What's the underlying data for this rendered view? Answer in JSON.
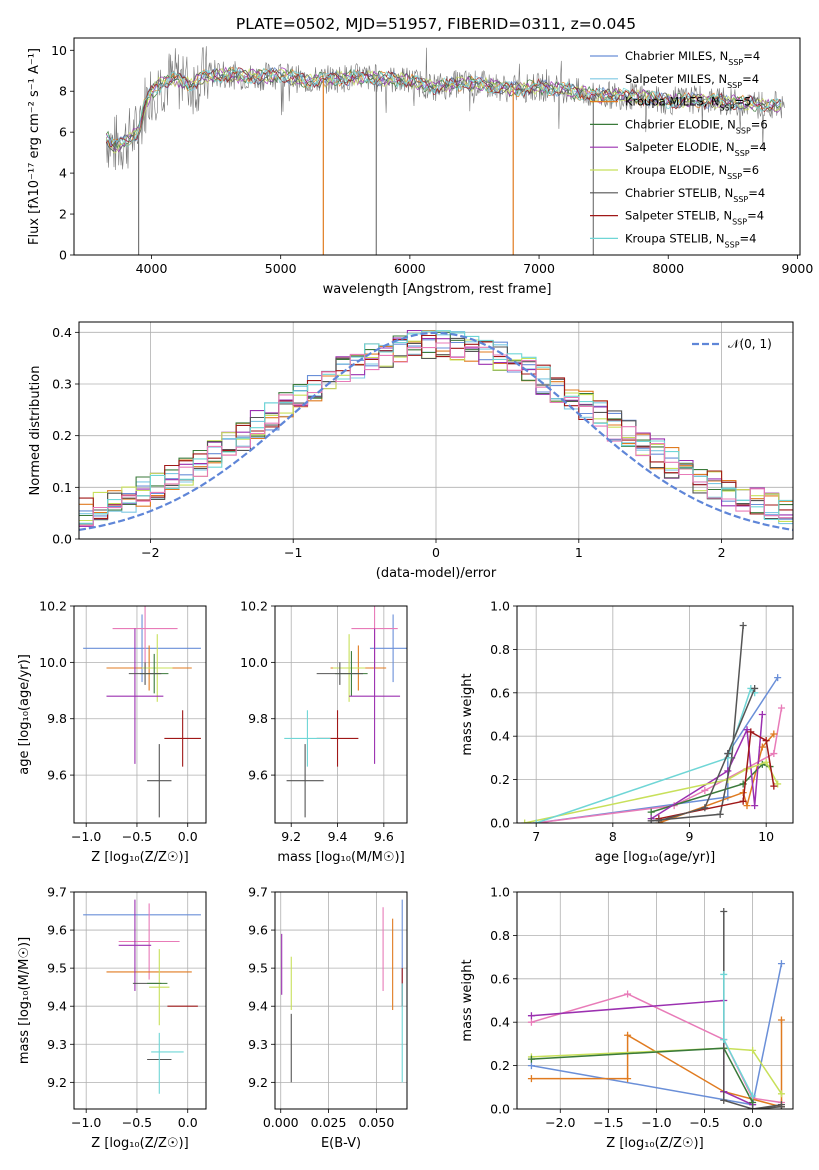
{
  "title": "PLATE=0502, MJD=51957, FIBERID=0311, z=0.045",
  "colors": {
    "chabrier_miles": "#6a8fd8",
    "salpeter_miles": "#7ec8e3",
    "kroupa_miles": "#e07b20",
    "chabrier_elodie": "#3a7a3a",
    "salpeter_elodie": "#9b30b0",
    "kroupa_elodie": "#c8e05a",
    "chabrier_stelib": "#555555",
    "salpeter_stelib": "#a01818",
    "kroupa_stelib": "#6fd6d6",
    "pink": "#e87bb8",
    "data": "#777777",
    "normal": "#5f86d8"
  },
  "chart_data": [
    {
      "id": "spectrum",
      "type": "line",
      "xlabel": "wavelength [Angstrom, rest frame]",
      "ylabel": "Flux [fλ10⁻¹⁷ erg cm⁻² s⁻¹ A⁻¹]",
      "xlim": [
        3400,
        9020
      ],
      "ylim": [
        0,
        10.6
      ],
      "xticks": [
        "4000",
        "5000",
        "6000",
        "7000",
        "8000",
        "9000"
      ],
      "yticks": [
        "0",
        "2",
        "4",
        "6",
        "8",
        "10"
      ],
      "legend": [
        "Chabrier MILES, N_SSP=4",
        "Salpeter MILES, N_SSP=4",
        "Kroupa MILES, N_SSP=5",
        "Chabrier ELODIE, N_SSP=6",
        "Salpeter ELODIE, N_SSP=4",
        "Kroupa ELODIE, N_SSP=6",
        "Chabrier STELIB, N_SSP=4",
        "Salpeter STELIB, N_SSP=4",
        "Kroupa STELIB, N_SSP=4"
      ],
      "legend_placement": "right",
      "continuum": [
        [
          3650,
          5.8
        ],
        [
          3700,
          5.3
        ],
        [
          3800,
          5.6
        ],
        [
          3900,
          6.0
        ],
        [
          3950,
          7.4
        ],
        [
          4000,
          8.0
        ],
        [
          4100,
          8.5
        ],
        [
          4200,
          8.6
        ],
        [
          4300,
          8.3
        ],
        [
          4400,
          8.7
        ],
        [
          4600,
          8.8
        ],
        [
          4800,
          8.7
        ],
        [
          5000,
          8.8
        ],
        [
          5200,
          8.5
        ],
        [
          5400,
          8.6
        ],
        [
          5600,
          8.7
        ],
        [
          5800,
          8.6
        ],
        [
          6000,
          8.5
        ],
        [
          6200,
          8.2
        ],
        [
          6400,
          8.4
        ],
        [
          6600,
          8.3
        ],
        [
          6800,
          8.1
        ],
        [
          7000,
          8.2
        ],
        [
          7200,
          8.1
        ],
        [
          7400,
          7.8
        ],
        [
          7600,
          7.8
        ],
        [
          7800,
          7.7
        ],
        [
          8000,
          7.5
        ],
        [
          8200,
          7.6
        ],
        [
          8400,
          7.5
        ],
        [
          8600,
          7.4
        ],
        [
          8800,
          7.3
        ],
        [
          9000,
          7.4
        ]
      ],
      "dips": [
        [
          3900,
          0
        ],
        [
          5330,
          0
        ],
        [
          5740,
          0
        ],
        [
          6800,
          0
        ],
        [
          7420,
          0
        ]
      ]
    },
    {
      "id": "residuals",
      "type": "histogram",
      "xlabel": "(data-model)/error",
      "ylabel": "Normed distribution",
      "xlim": [
        -2.5,
        2.5
      ],
      "ylim": [
        0,
        0.42
      ],
      "xticks": [
        "−2",
        "−1",
        "0",
        "1",
        "2"
      ],
      "yticks": [
        "0.0",
        "0.1",
        "0.2",
        "0.3",
        "0.4"
      ],
      "legend": [
        "𝒩(0, 1)"
      ],
      "legend_placement": "top-right",
      "bin_width": 0.1
    },
    {
      "id": "age_vs_Z",
      "type": "scatter",
      "xlabel": "Z [log₁₀(Z/Z☉)]",
      "ylabel": "age  [log₁₀(age/yr)]",
      "xlim": [
        -1.12,
        0.18
      ],
      "ylim": [
        9.43,
        10.2
      ],
      "xticks": [
        "−1.0",
        "−0.5",
        "0.0"
      ],
      "yticks": [
        "9.6",
        "9.8",
        "10.0",
        "10.2"
      ],
      "points": [
        {
          "c": "chabrier_miles",
          "x": -0.45,
          "xe": 0.58,
          "y": 10.05,
          "ye": 0.12
        },
        {
          "c": "pink",
          "x": -0.42,
          "xe": 0.32,
          "y": 10.12,
          "ye": 0.14
        },
        {
          "c": "kroupa_miles",
          "x": -0.38,
          "xe": 0.42,
          "y": 9.98,
          "ye": 0.08
        },
        {
          "c": "kroupa_elodie",
          "x": -0.3,
          "xe": 0.15,
          "y": 9.98,
          "ye": 0.12
        },
        {
          "c": "chabrier_elodie",
          "x": -0.33,
          "xe": 0.14,
          "y": 9.96,
          "ye": 0.07
        },
        {
          "c": "salpeter_elodie",
          "x": -0.52,
          "xe": 0.28,
          "y": 9.88,
          "ye": 0.24
        },
        {
          "c": "chabrier_stelib",
          "x": -0.42,
          "xe": 0.16,
          "y": 9.96,
          "ye": 0.04
        },
        {
          "c": "salpeter_stelib",
          "x": -0.05,
          "xe": 0.18,
          "y": 9.73,
          "ye": 0.1
        },
        {
          "c": "chabrier_stelib",
          "x": -0.28,
          "xe": 0.12,
          "y": 9.58,
          "ye": 0.13
        }
      ]
    },
    {
      "id": "age_vs_mass",
      "type": "scatter",
      "xlabel": "mass [log₁₀(M/M☉)]",
      "ylabel": "",
      "xlim": [
        9.13,
        9.7
      ],
      "ylim": [
        9.43,
        10.2
      ],
      "xticks": [
        "9.2",
        "9.4",
        "9.6"
      ],
      "yticks": [
        "9.6",
        "9.8",
        "10.0",
        "10.2"
      ],
      "points": [
        {
          "c": "chabrier_miles",
          "x": 9.64,
          "xe": 0.1,
          "y": 10.05,
          "ye": 0.12
        },
        {
          "c": "pink",
          "x": 9.56,
          "xe": 0.1,
          "y": 10.12,
          "ye": 0.14
        },
        {
          "c": "kroupa_miles",
          "x": 9.49,
          "xe": 0.12,
          "y": 9.98,
          "ye": 0.08
        },
        {
          "c": "kroupa_elodie",
          "x": 9.45,
          "xe": 0.07,
          "y": 9.98,
          "ye": 0.12
        },
        {
          "c": "chabrier_elodie",
          "x": 9.46,
          "xe": 0.07,
          "y": 9.96,
          "ye": 0.08
        },
        {
          "c": "salpeter_elodie",
          "x": 9.56,
          "xe": 0.11,
          "y": 9.88,
          "ye": 0.24
        },
        {
          "c": "chabrier_stelib",
          "x": 9.41,
          "xe": 0.1,
          "y": 9.96,
          "ye": 0.04
        },
        {
          "c": "salpeter_stelib",
          "x": 9.4,
          "xe": 0.09,
          "y": 9.73,
          "ye": 0.1
        },
        {
          "c": "kroupa_stelib",
          "x": 9.27,
          "xe": 0.1,
          "y": 9.73,
          "ye": 0.1
        },
        {
          "c": "chabrier_stelib",
          "x": 9.26,
          "xe": 0.08,
          "y": 9.58,
          "ye": 0.13
        }
      ]
    },
    {
      "id": "weight_vs_age",
      "type": "line",
      "xlabel": "age  [log₁₀(age/yr)]",
      "ylabel": "mass weight",
      "xlim": [
        6.75,
        10.35
      ],
      "ylim": [
        0,
        1.0
      ],
      "xticks": [
        "7",
        "8",
        "9",
        "10"
      ],
      "yticks": [
        "0.0",
        "0.2",
        "0.4",
        "0.6",
        "0.8",
        "1.0"
      ],
      "series": [
        {
          "c": "chabrier_miles",
          "pts": [
            [
              7.0,
              0.0
            ],
            [
              9.5,
              0.12
            ],
            [
              9.5,
              0.32
            ],
            [
              10.15,
              0.67
            ]
          ]
        },
        {
          "c": "pink",
          "pts": [
            [
              7.0,
              0.0
            ],
            [
              8.8,
              0.08
            ],
            [
              9.2,
              0.15
            ],
            [
              10.1,
              0.32
            ],
            [
              10.2,
              0.53
            ]
          ]
        },
        {
          "c": "kroupa_miles",
          "pts": [
            [
              8.6,
              0.0
            ],
            [
              9.7,
              0.14
            ],
            [
              9.75,
              0.08
            ],
            [
              9.95,
              0.35
            ],
            [
              10.1,
              0.41
            ]
          ]
        },
        {
          "c": "chabrier_elodie",
          "pts": [
            [
              8.5,
              0.05
            ],
            [
              9.7,
              0.18
            ],
            [
              9.95,
              0.27
            ],
            [
              10.05,
              0.26
            ]
          ]
        },
        {
          "c": "salpeter_elodie",
          "pts": [
            [
              8.5,
              0.02
            ],
            [
              9.5,
              0.24
            ],
            [
              9.75,
              0.43
            ],
            [
              9.85,
              0.08
            ],
            [
              9.95,
              0.5
            ]
          ]
        },
        {
          "c": "kroupa_elodie",
          "pts": [
            [
              6.85,
              0.0
            ],
            [
              9.5,
              0.2
            ],
            [
              9.75,
              0.25
            ],
            [
              10.0,
              0.28
            ],
            [
              10.15,
              0.18
            ]
          ]
        },
        {
          "c": "chabrier_stelib",
          "pts": [
            [
              8.5,
              0.01
            ],
            [
              9.4,
              0.04
            ],
            [
              9.55,
              0.3
            ],
            [
              9.7,
              0.91
            ]
          ]
        },
        {
          "c": "salpeter_stelib",
          "pts": [
            [
              8.6,
              0.02
            ],
            [
              9.7,
              0.1
            ],
            [
              9.8,
              0.42
            ],
            [
              10.0,
              0.38
            ],
            [
              10.1,
              0.17
            ]
          ]
        },
        {
          "c": "kroupa_stelib",
          "pts": [
            [
              7.0,
              0.0
            ],
            [
              9.5,
              0.3
            ],
            [
              9.8,
              0.62
            ],
            [
              9.85,
              0.6
            ]
          ]
        },
        {
          "c": "chabrier_stelib",
          "pts": [
            [
              8.6,
              0.01
            ],
            [
              9.2,
              0.07
            ],
            [
              9.5,
              0.32
            ],
            [
              9.85,
              0.62
            ]
          ]
        }
      ]
    },
    {
      "id": "mass_vs_Z",
      "type": "scatter",
      "xlabel": "Z [log₁₀(Z/Z☉)]",
      "ylabel": "mass [log₁₀(M/M☉)]",
      "xlim": [
        -1.12,
        0.18
      ],
      "ylim": [
        9.13,
        9.7
      ],
      "xticks": [
        "−1.0",
        "−0.5",
        "0.0"
      ],
      "yticks": [
        "9.2",
        "9.3",
        "9.4",
        "9.5",
        "9.6",
        "9.7"
      ],
      "points": [
        {
          "c": "chabrier_miles",
          "x": -0.45,
          "xe": 0.58,
          "y": 9.64,
          "ye": 0.0
        },
        {
          "c": "pink",
          "x": -0.38,
          "xe": 0.3,
          "y": 9.57,
          "ye": 0.1
        },
        {
          "c": "kroupa_miles",
          "x": -0.38,
          "xe": 0.42,
          "y": 9.49,
          "ye": 0.0
        },
        {
          "c": "salpeter_elodie",
          "x": -0.52,
          "xe": 0.16,
          "y": 9.56,
          "ye": 0.12
        },
        {
          "c": "chabrier_stelib",
          "x": -0.4,
          "xe": 0.14,
          "y": 9.46,
          "ye": 0.0
        },
        {
          "c": "kroupa_elodie",
          "x": -0.28,
          "xe": 0.1,
          "y": 9.45,
          "ye": 0.1
        },
        {
          "c": "chabrier_elodie",
          "x": -0.3,
          "xe": 0.1,
          "y": 9.46,
          "ye": 0.0
        },
        {
          "c": "salpeter_stelib",
          "x": -0.05,
          "xe": 0.15,
          "y": 9.4,
          "ye": 0.0
        },
        {
          "c": "kroupa_stelib",
          "x": -0.2,
          "xe": 0.16,
          "y": 9.28,
          "ye": 0.0
        },
        {
          "c": "chabrier_stelib",
          "x": -0.28,
          "xe": 0.12,
          "y": 9.26,
          "ye": 0.0
        },
        {
          "c": "kroupa_stelib",
          "x": -0.28,
          "xe": 0.0,
          "y": 9.25,
          "ye": 0.08
        }
      ]
    },
    {
      "id": "mass_vs_ebv",
      "type": "scatter",
      "xlabel": "E(B-V)",
      "ylabel": "",
      "xlim": [
        -0.003,
        0.066
      ],
      "ylim": [
        9.13,
        9.7
      ],
      "xticks": [
        "0.000",
        "0.025",
        "0.050"
      ],
      "yticks": [
        "9.2",
        "9.3",
        "9.4",
        "9.5",
        "9.6",
        "9.7"
      ],
      "points": [
        {
          "c": "salpeter_elodie",
          "x": 0.0005,
          "y": 9.51,
          "ye": 0.08
        },
        {
          "c": "kroupa_elodie",
          "x": 0.0055,
          "y": 9.46,
          "ye": 0.07
        },
        {
          "c": "chabrier_stelib",
          "x": 0.0055,
          "y": 9.29,
          "ye": 0.09
        },
        {
          "c": "pink",
          "x": 0.0535,
          "y": 9.55,
          "ye": 0.11
        },
        {
          "c": "kroupa_miles",
          "x": 0.0585,
          "y": 9.51,
          "ye": 0.12
        },
        {
          "c": "chabrier_miles",
          "x": 0.0635,
          "y": 9.54,
          "ye": 0.14
        },
        {
          "c": "salpeter_stelib",
          "x": 0.0635,
          "y": 9.45,
          "ye": 0.05
        },
        {
          "c": "kroupa_stelib",
          "x": 0.0635,
          "y": 9.33,
          "ye": 0.13
        }
      ]
    },
    {
      "id": "weight_vs_Z",
      "type": "line",
      "xlabel": "Z [log₁₀(Z/Z☉)]",
      "ylabel": "mass weight",
      "xlim": [
        -2.45,
        0.42
      ],
      "ylim": [
        0,
        1.0
      ],
      "xticks": [
        "−2.0",
        "−1.5",
        "−1.0",
        "−0.5",
        "0.0"
      ],
      "yticks": [
        "0.0",
        "0.2",
        "0.4",
        "0.6",
        "0.8",
        "1.0"
      ],
      "series": [
        {
          "c": "chabrier_miles",
          "pts": [
            [
              -2.3,
              0.2
            ],
            [
              0.0,
              0.02
            ],
            [
              0.3,
              0.67
            ]
          ]
        },
        {
          "c": "pink",
          "pts": [
            [
              -2.3,
              0.4
            ],
            [
              -1.3,
              0.53
            ],
            [
              -0.3,
              0.32
            ],
            [
              0.0,
              0.05
            ],
            [
              0.3,
              0.03
            ]
          ]
        },
        {
          "c": "kroupa_miles",
          "pts": [
            [
              -2.3,
              0.14
            ],
            [
              -1.3,
              0.14
            ],
            [
              -1.3,
              0.34
            ],
            [
              -0.3,
              0.08
            ],
            [
              0.3,
              0.01
            ],
            [
              0.3,
              0.41
            ]
          ]
        },
        {
          "c": "salpeter_elodie",
          "pts": [
            [
              -2.3,
              0.43
            ],
            [
              -0.3,
              0.5
            ],
            [
              -0.3,
              0.08
            ],
            [
              0.0,
              0.02
            ]
          ]
        },
        {
          "c": "kroupa_elodie",
          "pts": [
            [
              -2.3,
              0.24
            ],
            [
              -0.3,
              0.28
            ],
            [
              0.0,
              0.27
            ],
            [
              0.3,
              0.07
            ]
          ]
        },
        {
          "c": "chabrier_elodie",
          "pts": [
            [
              -2.3,
              0.23
            ],
            [
              -0.3,
              0.28
            ],
            [
              0.0,
              0.03
            ]
          ]
        },
        {
          "c": "chabrier_stelib",
          "pts": [
            [
              -0.3,
              0.91
            ],
            [
              -0.3,
              0.04
            ],
            [
              0.0,
              0.0
            ],
            [
              0.3,
              0.02
            ]
          ]
        },
        {
          "c": "kroupa_stelib",
          "pts": [
            [
              -0.3,
              0.62
            ],
            [
              -0.3,
              0.32
            ],
            [
              0.0,
              0.06
            ]
          ]
        },
        {
          "c": "chabrier_stelib",
          "pts": [
            [
              0.0,
              0.0
            ],
            [
              0.3,
              0.01
            ]
          ]
        }
      ]
    }
  ]
}
